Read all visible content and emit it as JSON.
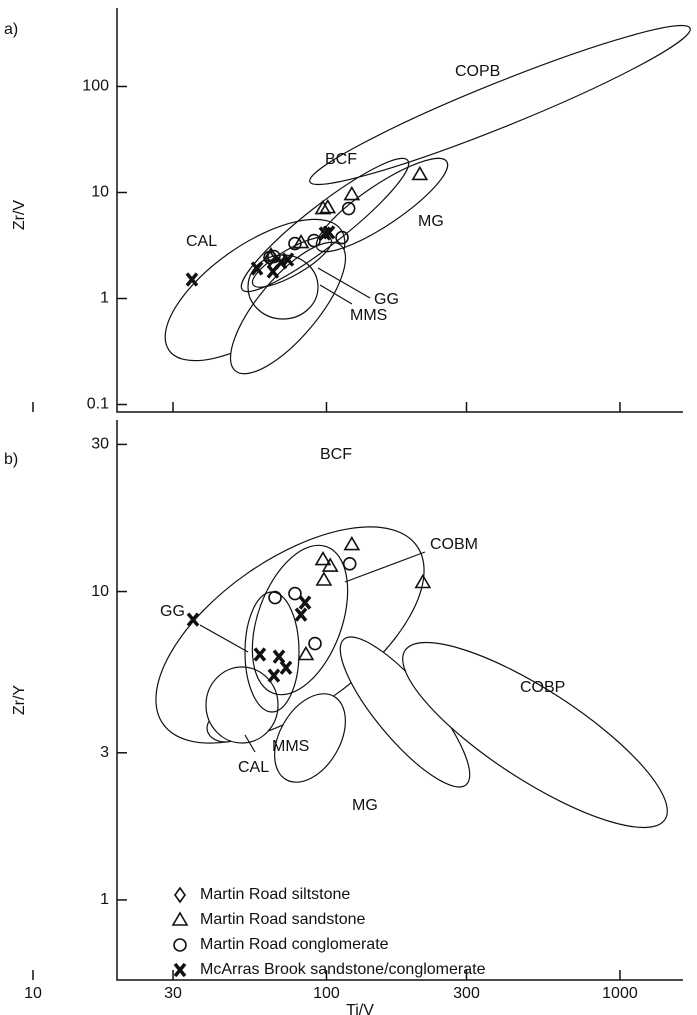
{
  "chart_data": [
    {
      "type": "scatter",
      "panel_label": "a)",
      "ylabel": "Zr/V",
      "xlim": [
        10,
        1640
      ],
      "ylim": [
        0.085,
        550
      ],
      "log_x": true,
      "log_y": true,
      "yticks": [
        0.1,
        1,
        10,
        100
      ],
      "field_labels": [
        "COPB",
        "BCF",
        "MG",
        "CAL",
        "GG",
        "MMS"
      ],
      "series": [
        {
          "marker": "diamond",
          "x": [
            64.2
          ],
          "values": [
            2.38
          ]
        },
        {
          "marker": "triangle",
          "x": [
            64.7,
            81.9,
            97.3,
            101,
            122,
            208
          ],
          "values": [
            2.55,
            3.37,
            7.06,
            7.21,
            9.57,
            14.8
          ]
        },
        {
          "marker": "circle",
          "x": [
            64.2,
            66.2,
            78.1,
            90.7,
            113,
            119
          ],
          "values": [
            2.44,
            2.49,
            3.3,
            3.52,
            3.76,
            7.06
          ]
        },
        {
          "marker": "cross",
          "x": [
            34.8,
            58.0,
            65.7,
            70.0,
            73.9,
            102,
            98.8
          ],
          "values": [
            1.51,
            1.92,
            1.8,
            2.19,
            2.33,
            4.2,
            4.1
          ]
        }
      ]
    },
    {
      "type": "scatter",
      "panel_label": "b)",
      "ylabel": "Zr/Y",
      "xlabel": "Ti/V",
      "xlim": [
        10,
        1640
      ],
      "ylim": [
        0.55,
        36
      ],
      "log_x": true,
      "log_y": true,
      "xticks": [
        10,
        30,
        100,
        300,
        1000
      ],
      "yticks": [
        1,
        3,
        10,
        30
      ],
      "field_labels": [
        "BCF",
        "GG",
        "COBM",
        "COBP",
        "CAL",
        "MMS",
        "MG"
      ],
      "series": [
        {
          "name": "Martin Road siltstone",
          "marker": "diamond",
          "x": [],
          "values": []
        },
        {
          "name": "Martin Road sandstone",
          "marker": "triangle",
          "x": [
            85.1,
            97.3,
            103,
            98.0,
            122,
            213
          ],
          "values": [
            6.25,
            12.7,
            12.1,
            10.9,
            14.2,
            10.7
          ]
        },
        {
          "name": "Martin Road conglomerate",
          "marker": "circle",
          "x": [
            66.8,
            78.1,
            91.4,
            120
          ],
          "values": [
            9.56,
            9.85,
            6.78,
            12.3
          ]
        },
        {
          "name": "McArras Brook sandstone/conglomerate",
          "marker": "cross",
          "x": [
            35.1,
            59.3,
            68.9,
            66.2,
            72.8,
            84.5,
            81.9
          ],
          "values": [
            8.11,
            6.25,
            6.15,
            5.34,
            5.66,
            9.21,
            8.42
          ]
        }
      ]
    }
  ]
}
